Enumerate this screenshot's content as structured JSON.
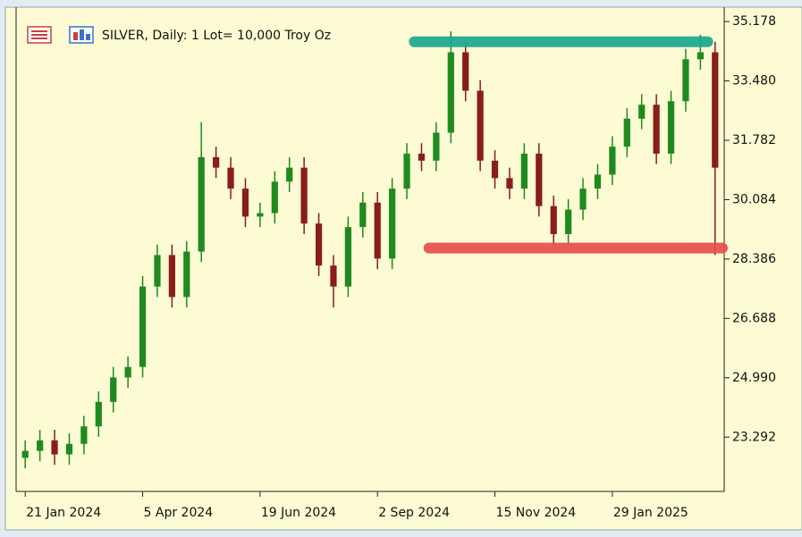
{
  "chart_data": {
    "type": "candlestick",
    "title": "SILVER, Daily:  1 Lot= 10,000 Troy Oz",
    "categories": [
      "21 Jan 2024",
      null,
      null,
      null,
      null,
      null,
      null,
      null,
      "5 Apr 2024",
      null,
      null,
      null,
      null,
      null,
      null,
      null,
      "19 Jun 2024",
      null,
      null,
      null,
      null,
      null,
      null,
      null,
      "2 Sep 2024",
      null,
      null,
      null,
      null,
      null,
      null,
      null,
      "15 Nov 2024",
      null,
      null,
      null,
      null,
      null,
      null,
      null,
      "29 Jan 2025",
      null,
      null,
      null,
      null,
      null,
      null,
      null
    ],
    "open": [
      22.7,
      22.9,
      23.2,
      22.8,
      23.1,
      23.6,
      24.3,
      25.0,
      25.3,
      27.6,
      28.5,
      27.3,
      28.6,
      31.3,
      31.0,
      30.4,
      29.6,
      29.7,
      30.6,
      31.0,
      29.4,
      28.2,
      27.6,
      29.3,
      30.0,
      28.4,
      30.4,
      31.4,
      31.2,
      32.0,
      34.3,
      33.2,
      31.2,
      30.7,
      30.4,
      31.4,
      29.9,
      29.1,
      29.8,
      30.4,
      30.8,
      31.6,
      32.4,
      32.8,
      31.4,
      32.9,
      34.1,
      34.3
    ],
    "high": [
      23.2,
      23.5,
      23.5,
      23.4,
      23.9,
      24.6,
      25.3,
      25.6,
      27.9,
      28.8,
      28.8,
      28.9,
      32.3,
      31.6,
      31.3,
      30.7,
      30.0,
      30.9,
      31.3,
      31.3,
      29.7,
      28.5,
      29.6,
      30.3,
      30.3,
      30.7,
      31.7,
      31.7,
      32.3,
      34.9,
      34.6,
      33.5,
      31.5,
      31.0,
      31.7,
      31.7,
      30.2,
      30.1,
      30.7,
      31.1,
      31.9,
      32.7,
      33.1,
      33.1,
      33.2,
      34.4,
      34.8,
      34.6
    ],
    "low": [
      22.4,
      22.6,
      22.5,
      22.5,
      22.8,
      23.3,
      24.0,
      24.7,
      25.0,
      27.3,
      27.0,
      27.0,
      28.3,
      30.7,
      30.1,
      29.3,
      29.3,
      29.4,
      30.3,
      29.1,
      27.9,
      27.0,
      27.3,
      29.0,
      28.1,
      28.1,
      30.1,
      30.9,
      30.9,
      31.7,
      32.9,
      30.9,
      30.4,
      30.1,
      30.1,
      29.6,
      28.8,
      28.8,
      29.5,
      30.1,
      30.5,
      31.3,
      32.1,
      31.1,
      31.1,
      32.6,
      33.8,
      28.5
    ],
    "close": [
      22.9,
      23.2,
      22.8,
      23.1,
      23.6,
      24.3,
      25.0,
      25.3,
      27.6,
      28.5,
      27.3,
      28.6,
      31.3,
      31.0,
      30.4,
      29.6,
      29.7,
      30.6,
      31.0,
      29.4,
      28.2,
      27.6,
      29.3,
      30.0,
      28.4,
      30.4,
      31.4,
      31.2,
      32.0,
      34.3,
      33.2,
      31.2,
      30.7,
      30.4,
      31.4,
      29.9,
      29.1,
      29.8,
      30.4,
      30.8,
      31.6,
      32.4,
      32.8,
      31.4,
      32.9,
      34.1,
      34.3,
      31.0
    ],
    "up_color": "#1f8a1f",
    "down_color": "#8a1c1c",
    "ylim": [
      21.74,
      35.59
    ],
    "yticks": [
      35.178,
      {
        "value": 33.48,
        "label": "33.480"
      },
      31.782,
      30.084,
      28.386,
      26.688,
      {
        "value": 24.99,
        "label": "24.990"
      },
      23.292
    ],
    "levels": [
      {
        "value": 34.6,
        "color": "#1aa88f",
        "start": 27,
        "end": 47
      },
      {
        "value": 28.7,
        "color": "#e84e4e",
        "start": 28,
        "end": 48
      }
    ]
  }
}
